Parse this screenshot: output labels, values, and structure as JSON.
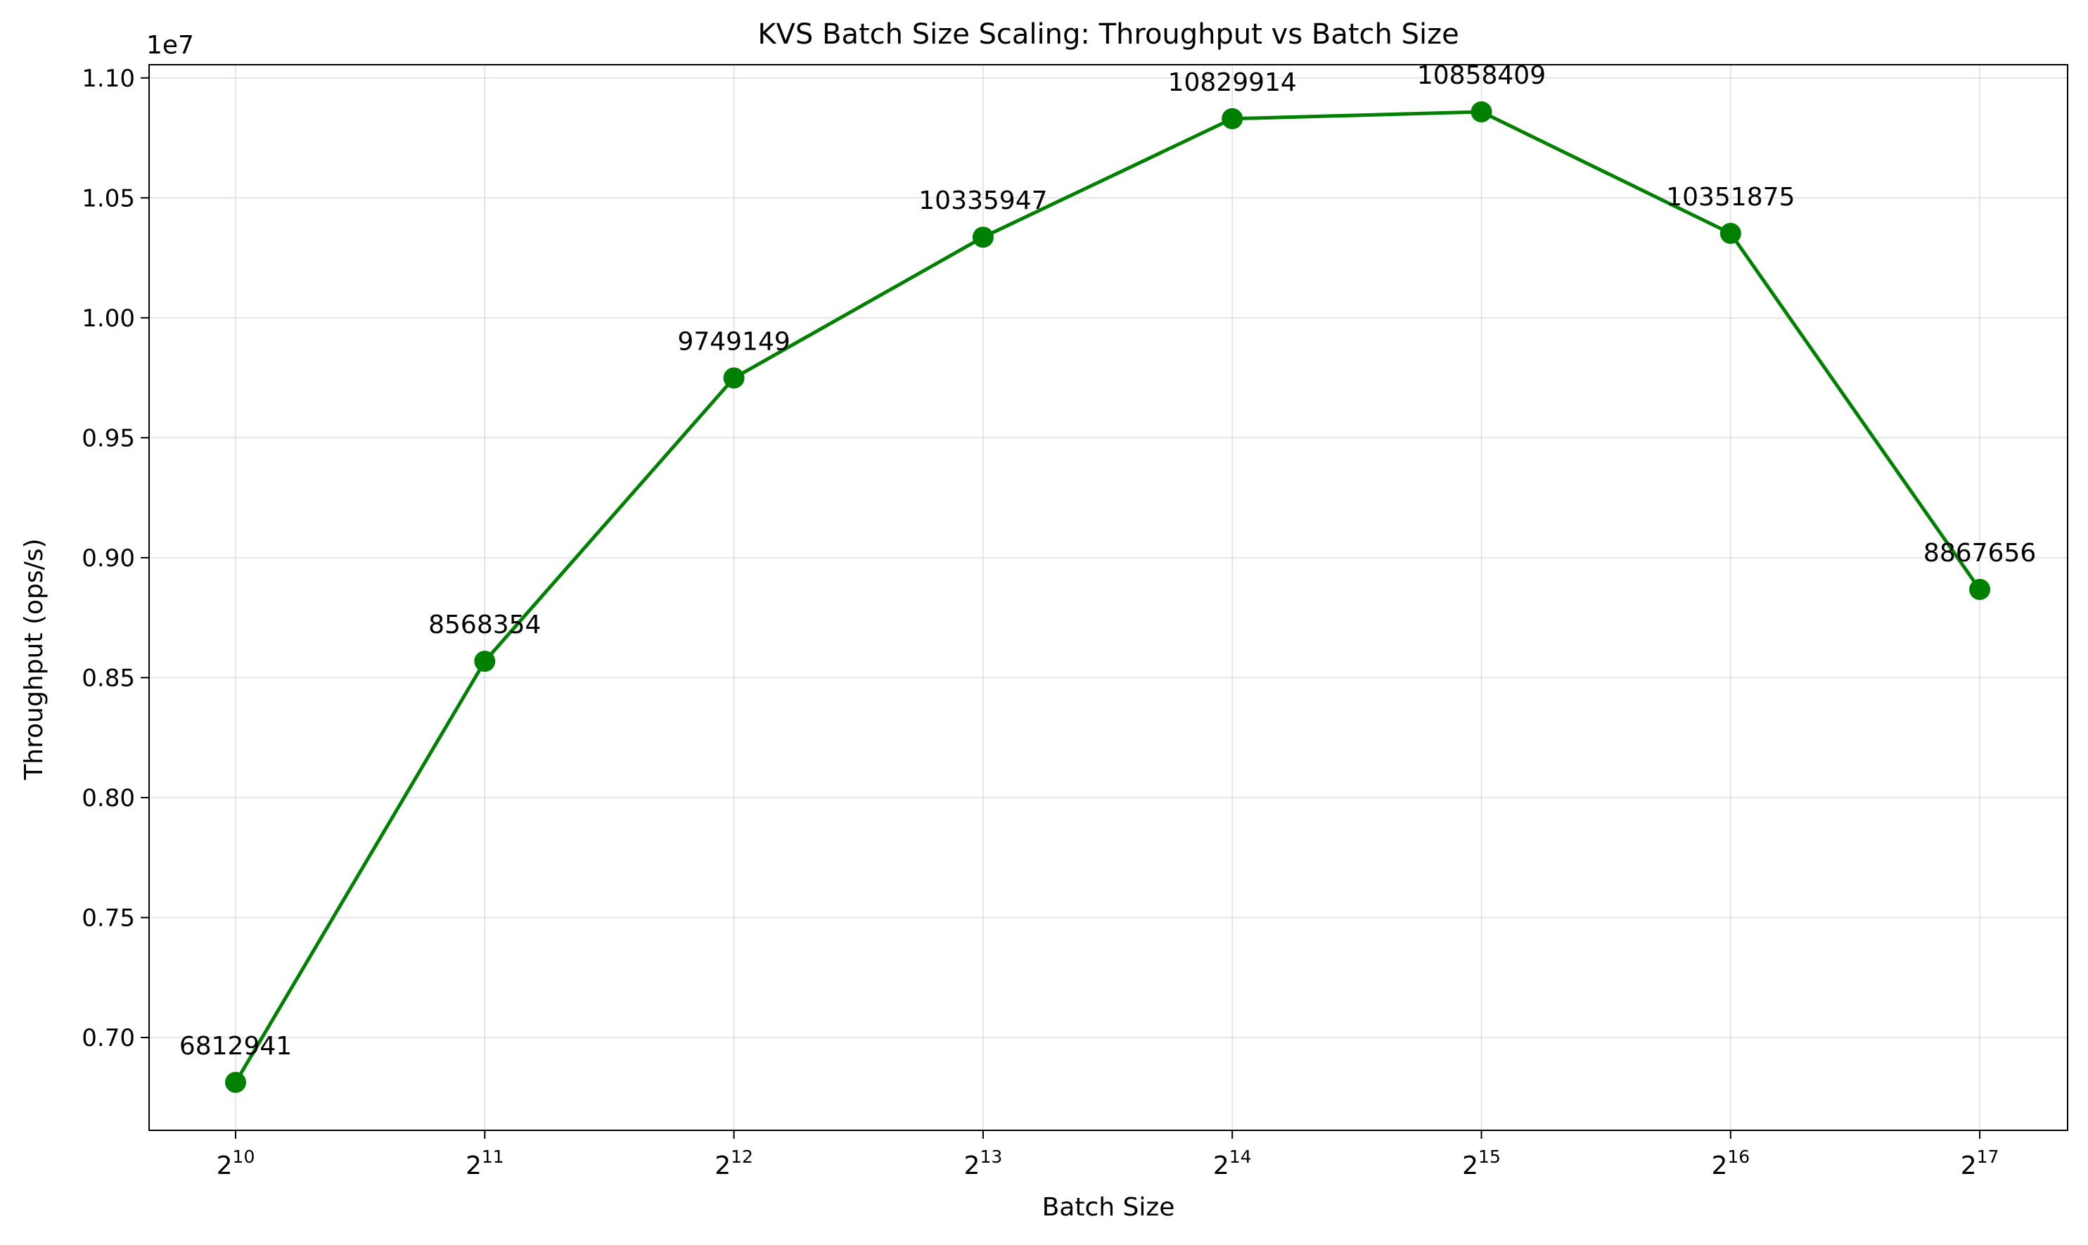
{
  "chart_data": {
    "type": "line",
    "title": "KVS Batch Size Scaling: Throughput vs Batch Size",
    "xlabel": "Batch Size",
    "ylabel": "Throughput (ops/s)",
    "y_offset_label": "1e7",
    "x_scale": "log2",
    "x": [
      1024,
      2048,
      4096,
      8192,
      16384,
      32768,
      65536,
      131072
    ],
    "x_tick_labels": [
      {
        "base": "2",
        "exp": "10"
      },
      {
        "base": "2",
        "exp": "11"
      },
      {
        "base": "2",
        "exp": "12"
      },
      {
        "base": "2",
        "exp": "13"
      },
      {
        "base": "2",
        "exp": "14"
      },
      {
        "base": "2",
        "exp": "15"
      },
      {
        "base": "2",
        "exp": "16"
      },
      {
        "base": "2",
        "exp": "17"
      }
    ],
    "y_ticks": [
      0.7,
      0.75,
      0.8,
      0.85,
      0.9,
      0.95,
      1.0,
      1.05,
      1.1
    ],
    "y_tick_labels": [
      "0.70",
      "0.75",
      "0.80",
      "0.85",
      "0.90",
      "0.95",
      "1.00",
      "1.05",
      "1.10"
    ],
    "ylim": [
      0.6613,
      1.1055
    ],
    "series": [
      {
        "values": [
          6812941,
          8568354,
          9749149,
          10335947,
          10829914,
          10858409,
          10351875,
          8867656
        ],
        "labels": [
          "6812941",
          "8568354",
          "9749149",
          "10335947",
          "10829914",
          "10858409",
          "10351875",
          "8867656"
        ],
        "color": "#008000",
        "marker": "circle"
      }
    ],
    "grid": true,
    "grid_color": "#b0b0b0",
    "axis_color": "#000000"
  }
}
